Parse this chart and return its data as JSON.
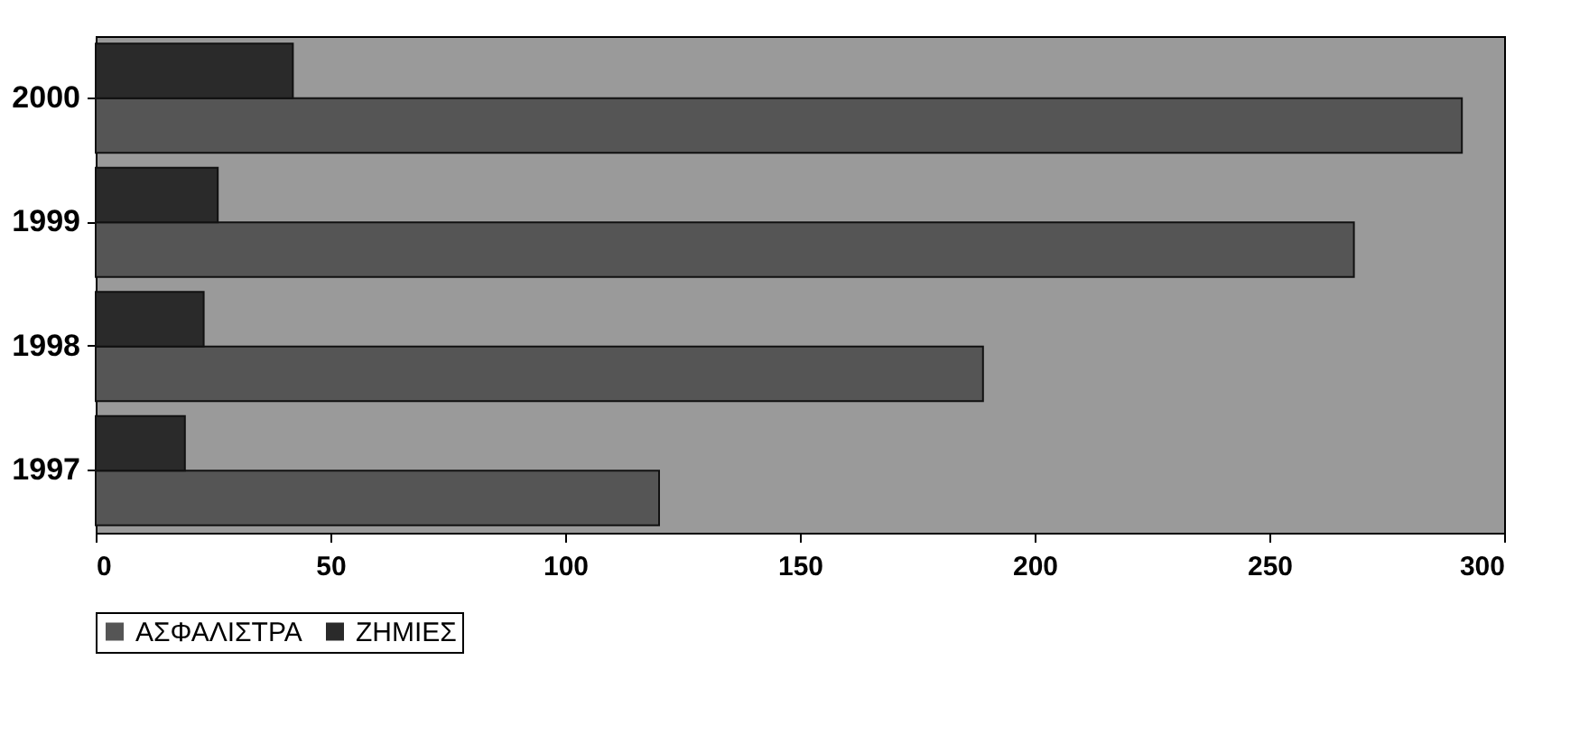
{
  "chart_data": {
    "type": "bar",
    "orientation": "horizontal",
    "categories": [
      "2000",
      "1999",
      "1998",
      "1997"
    ],
    "series": [
      {
        "name": "ΑΣΦΑΛΙΣΤΡΑ",
        "color": "#555555",
        "values": [
          291,
          268,
          189,
          120
        ]
      },
      {
        "name": "ΖΗΜΙΕΣ",
        "color": "#2a2a2a",
        "values": [
          42,
          26,
          23,
          19
        ]
      }
    ],
    "xlim": [
      0,
      300
    ],
    "xticks": [
      0,
      50,
      100,
      150,
      200,
      250,
      300
    ],
    "grid": false,
    "legend": "bottom"
  }
}
